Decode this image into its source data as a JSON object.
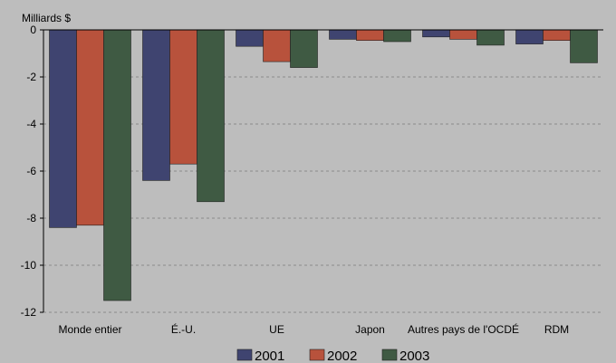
{
  "chart_data": {
    "type": "bar",
    "ylabel": "Milliards $",
    "ylim": [
      -12,
      0
    ],
    "yticks": [
      "0",
      "-2",
      "-4",
      "-6",
      "-8",
      "-10",
      "-12"
    ],
    "categories": [
      "Monde entier",
      "É.-U.",
      "UE",
      "Japon",
      "Autres pays de l'OCDÉ",
      "RDM"
    ],
    "series": [
      {
        "name": "2001",
        "color": "#3f4470",
        "values": [
          -8.4,
          -6.4,
          -0.7,
          -0.4,
          -0.3,
          -0.6
        ]
      },
      {
        "name": "2002",
        "color": "#b8523c",
        "values": [
          -8.3,
          -5.7,
          -1.35,
          -0.45,
          -0.4,
          -0.45
        ]
      },
      {
        "name": "2003",
        "color": "#3f5a43",
        "values": [
          -11.5,
          -7.3,
          -1.6,
          -0.5,
          -0.65,
          -1.4
        ]
      }
    ],
    "grid": true,
    "legend_position": "bottom"
  }
}
